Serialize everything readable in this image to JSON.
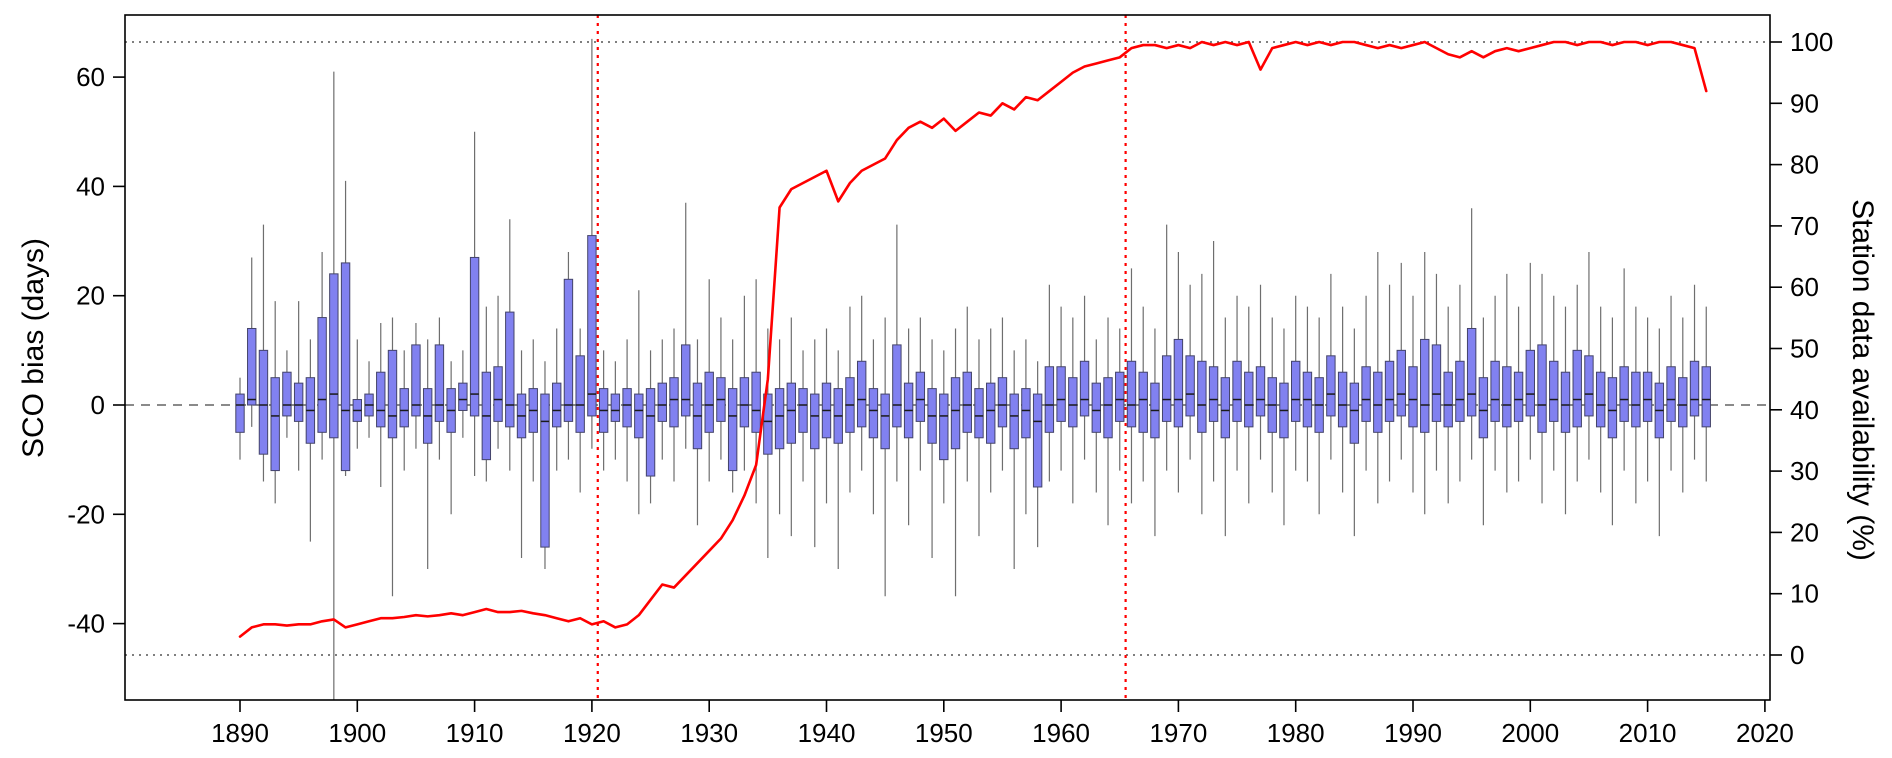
{
  "chart_data": {
    "type": "boxplot+line",
    "title": "",
    "left_axis": {
      "label": "SCO bias (days)",
      "ticks": [
        -40,
        -20,
        0,
        20,
        40,
        60
      ],
      "range": [
        -55,
        72
      ]
    },
    "right_axis": {
      "label": "Station data availability (%)",
      "ticks": [
        0,
        10,
        20,
        30,
        40,
        50,
        60,
        70,
        80,
        90,
        100
      ],
      "range": [
        0,
        100
      ]
    },
    "x_axis": {
      "ticks": [
        1890,
        1900,
        1910,
        1920,
        1930,
        1940,
        1950,
        1960,
        1970,
        1980,
        1990,
        2000,
        2010,
        2020
      ],
      "range": [
        1880,
        2021
      ]
    },
    "year_start": 1890,
    "year_end": 2015,
    "boxes_format": [
      "whisker_low",
      "q1",
      "median",
      "q3",
      "whisker_high"
    ],
    "boxes": [
      [
        -10,
        -5,
        0,
        2,
        5
      ],
      [
        -4,
        0,
        1,
        14,
        27
      ],
      [
        -14,
        -9,
        0,
        10,
        33
      ],
      [
        -18,
        -12,
        -2,
        5,
        19
      ],
      [
        -6,
        -2,
        0,
        6,
        10
      ],
      [
        -12,
        -3,
        0,
        4,
        19
      ],
      [
        -25,
        -7,
        -1,
        5,
        12
      ],
      [
        -10,
        -5,
        1,
        16,
        28
      ],
      [
        -54,
        -6,
        2,
        24,
        61
      ],
      [
        -13,
        -12,
        -1,
        26,
        41
      ],
      [
        -8,
        -3,
        -1,
        1,
        12
      ],
      [
        -6,
        -2,
        0,
        2,
        8
      ],
      [
        -15,
        -4,
        -1,
        6,
        15
      ],
      [
        -35,
        -6,
        -2,
        10,
        16
      ],
      [
        -12,
        -4,
        -1,
        3,
        10
      ],
      [
        -8,
        -2,
        0,
        11,
        15
      ],
      [
        -30,
        -7,
        -2,
        3,
        12
      ],
      [
        -10,
        -3,
        0,
        11,
        16
      ],
      [
        -20,
        -5,
        -1,
        3,
        8
      ],
      [
        -6,
        -1,
        1,
        4,
        10
      ],
      [
        -13,
        -2,
        2,
        27,
        50
      ],
      [
        -14,
        -10,
        -2,
        6,
        18
      ],
      [
        -8,
        -3,
        1,
        7,
        20
      ],
      [
        -12,
        -4,
        0,
        17,
        34
      ],
      [
        -28,
        -6,
        -2,
        2,
        10
      ],
      [
        -14,
        -5,
        -1,
        3,
        12
      ],
      [
        -30,
        -26,
        -3,
        2,
        8
      ],
      [
        -12,
        -4,
        -1,
        4,
        14
      ],
      [
        -10,
        -3,
        0,
        23,
        28
      ],
      [
        -16,
        -5,
        0,
        9,
        14
      ],
      [
        -8,
        -2,
        2,
        31,
        67
      ],
      [
        -12,
        -5,
        -1,
        3,
        10
      ],
      [
        -10,
        -3,
        -1,
        2,
        8
      ],
      [
        -14,
        -4,
        0,
        3,
        12
      ],
      [
        -20,
        -6,
        -1,
        2,
        21
      ],
      [
        -18,
        -13,
        -2,
        3,
        10
      ],
      [
        -10,
        -3,
        0,
        4,
        12
      ],
      [
        -14,
        -4,
        1,
        5,
        14
      ],
      [
        -8,
        -2,
        1,
        11,
        37
      ],
      [
        -22,
        -8,
        -2,
        4,
        12
      ],
      [
        -14,
        -5,
        0,
        6,
        23
      ],
      [
        -10,
        -3,
        1,
        5,
        16
      ],
      [
        -16,
        -12,
        -2,
        3,
        12
      ],
      [
        -12,
        -4,
        0,
        5,
        20
      ],
      [
        -18,
        -5,
        -1,
        6,
        23
      ],
      [
        -28,
        -9,
        -3,
        2,
        14
      ],
      [
        -20,
        -8,
        -2,
        3,
        12
      ],
      [
        -24,
        -7,
        -1,
        4,
        16
      ],
      [
        -14,
        -5,
        0,
        3,
        10
      ],
      [
        -26,
        -8,
        -2,
        2,
        12
      ],
      [
        -18,
        -6,
        -1,
        4,
        14
      ],
      [
        -30,
        -7,
        -2,
        3,
        10
      ],
      [
        -16,
        -5,
        0,
        5,
        18
      ],
      [
        -12,
        -4,
        1,
        8,
        20
      ],
      [
        -20,
        -6,
        -1,
        3,
        12
      ],
      [
        -35,
        -8,
        -2,
        2,
        16
      ],
      [
        -14,
        -4,
        0,
        11,
        33
      ],
      [
        -22,
        -6,
        -1,
        4,
        14
      ],
      [
        -12,
        -3,
        1,
        6,
        16
      ],
      [
        -28,
        -7,
        -2,
        3,
        12
      ],
      [
        -18,
        -10,
        -2,
        2,
        10
      ],
      [
        -35,
        -8,
        -1,
        5,
        14
      ],
      [
        -14,
        -5,
        0,
        6,
        18
      ],
      [
        -24,
        -6,
        -2,
        3,
        12
      ],
      [
        -16,
        -7,
        -1,
        4,
        14
      ],
      [
        -12,
        -4,
        0,
        5,
        16
      ],
      [
        -30,
        -8,
        -2,
        2,
        10
      ],
      [
        -20,
        -6,
        -1,
        3,
        12
      ],
      [
        -26,
        -15,
        -3,
        2,
        8
      ],
      [
        -14,
        -5,
        0,
        7,
        22
      ],
      [
        -12,
        -3,
        1,
        7,
        18
      ],
      [
        -18,
        -4,
        0,
        5,
        16
      ],
      [
        -10,
        -2,
        1,
        8,
        20
      ],
      [
        -16,
        -5,
        -1,
        4,
        12
      ],
      [
        -22,
        -6,
        0,
        5,
        16
      ],
      [
        -12,
        -3,
        1,
        6,
        14
      ],
      [
        -18,
        -4,
        0,
        8,
        25
      ],
      [
        -14,
        -5,
        1,
        6,
        18
      ],
      [
        -24,
        -6,
        -1,
        4,
        14
      ],
      [
        -12,
        -3,
        1,
        9,
        33
      ],
      [
        -16,
        -4,
        1,
        12,
        28
      ],
      [
        -10,
        -2,
        2,
        9,
        22
      ],
      [
        -20,
        -5,
        0,
        8,
        24
      ],
      [
        -14,
        -3,
        1,
        7,
        30
      ],
      [
        -24,
        -6,
        -1,
        5,
        16
      ],
      [
        -12,
        -3,
        1,
        8,
        20
      ],
      [
        -18,
        -4,
        0,
        6,
        18
      ],
      [
        -10,
        -2,
        1,
        7,
        22
      ],
      [
        -16,
        -5,
        0,
        5,
        16
      ],
      [
        -22,
        -6,
        -1,
        4,
        14
      ],
      [
        -12,
        -3,
        1,
        8,
        20
      ],
      [
        -14,
        -4,
        1,
        6,
        18
      ],
      [
        -20,
        -5,
        0,
        5,
        16
      ],
      [
        -10,
        -2,
        2,
        9,
        24
      ],
      [
        -16,
        -4,
        0,
        6,
        18
      ],
      [
        -24,
        -7,
        -1,
        4,
        14
      ],
      [
        -12,
        -3,
        1,
        7,
        20
      ],
      [
        -18,
        -5,
        0,
        6,
        28
      ],
      [
        -14,
        -3,
        1,
        8,
        22
      ],
      [
        -10,
        -2,
        2,
        10,
        26
      ],
      [
        -16,
        -4,
        1,
        7,
        20
      ],
      [
        -20,
        -5,
        0,
        12,
        28
      ],
      [
        -12,
        -3,
        2,
        11,
        24
      ],
      [
        -18,
        -4,
        0,
        6,
        18
      ],
      [
        -14,
        -3,
        1,
        8,
        22
      ],
      [
        -10,
        -2,
        2,
        14,
        36
      ],
      [
        -22,
        -6,
        -1,
        5,
        16
      ],
      [
        -12,
        -3,
        1,
        8,
        20
      ],
      [
        -16,
        -4,
        0,
        7,
        24
      ],
      [
        -14,
        -3,
        1,
        6,
        18
      ],
      [
        -10,
        -2,
        2,
        10,
        26
      ],
      [
        -18,
        -5,
        0,
        11,
        24
      ],
      [
        -12,
        -3,
        1,
        8,
        20
      ],
      [
        -20,
        -5,
        0,
        6,
        18
      ],
      [
        -14,
        -4,
        1,
        10,
        22
      ],
      [
        -10,
        -2,
        2,
        9,
        28
      ],
      [
        -16,
        -4,
        0,
        6,
        18
      ],
      [
        -22,
        -6,
        -1,
        5,
        16
      ],
      [
        -12,
        -3,
        1,
        7,
        25
      ],
      [
        -18,
        -4,
        0,
        6,
        18
      ],
      [
        -14,
        -3,
        1,
        6,
        16
      ],
      [
        -24,
        -6,
        -1,
        4,
        14
      ],
      [
        -12,
        -3,
        1,
        7,
        20
      ],
      [
        -16,
        -4,
        0,
        5,
        16
      ],
      [
        -10,
        -2,
        1,
        8,
        22
      ],
      [
        -14,
        -4,
        1,
        7,
        18
      ]
    ],
    "availability_percent": [
      3,
      4.5,
      5,
      5,
      4.8,
      5,
      5,
      5.5,
      5.8,
      4.5,
      5,
      5.5,
      6,
      6,
      6.2,
      6.5,
      6.3,
      6.5,
      6.8,
      6.5,
      7,
      7.5,
      7,
      7,
      7.2,
      6.8,
      6.5,
      6,
      5.5,
      6,
      5,
      5.5,
      4.5,
      5,
      6.5,
      9,
      11.5,
      11,
      13,
      15,
      17,
      19,
      22,
      26,
      31,
      45,
      73,
      76,
      77,
      78,
      79,
      74,
      77,
      79,
      80,
      81,
      84,
      86,
      87,
      86,
      87.5,
      85.5,
      87,
      88.5,
      88,
      90,
      89,
      91,
      90.5,
      92,
      93.5,
      95,
      96,
      96.5,
      97,
      97.5,
      99,
      99.5,
      99.5,
      99,
      99.5,
      99,
      100,
      99.5,
      100,
      99.5,
      100,
      95.5,
      99,
      99.5,
      100,
      99.5,
      100,
      99.5,
      100,
      100,
      99.5,
      99,
      99.5,
      99,
      99.5,
      100,
      99,
      98,
      97.5,
      98.5,
      97.5,
      98.5,
      99,
      98.5,
      99,
      99.5,
      100,
      100,
      99.5,
      100,
      100,
      99.5,
      100,
      100,
      99.5,
      100,
      100,
      99.5,
      99,
      92
    ],
    "reference_lines": {
      "bias_zero_dashed": 0,
      "availability_dotted": [
        0,
        100
      ],
      "red_vertical_years": [
        1920.5,
        1965.5
      ]
    },
    "legend": "none",
    "grid": "off",
    "colors": {
      "box_fill": "#8181f0",
      "box_stroke": "#44446a",
      "whisker": "#6e6e6e",
      "median": "#1a1a1a",
      "availability_line": "#ff0000",
      "guide_dotted": "#555555",
      "zero_dashed": "#444444",
      "frame": "#000000",
      "text": "#000000"
    }
  }
}
